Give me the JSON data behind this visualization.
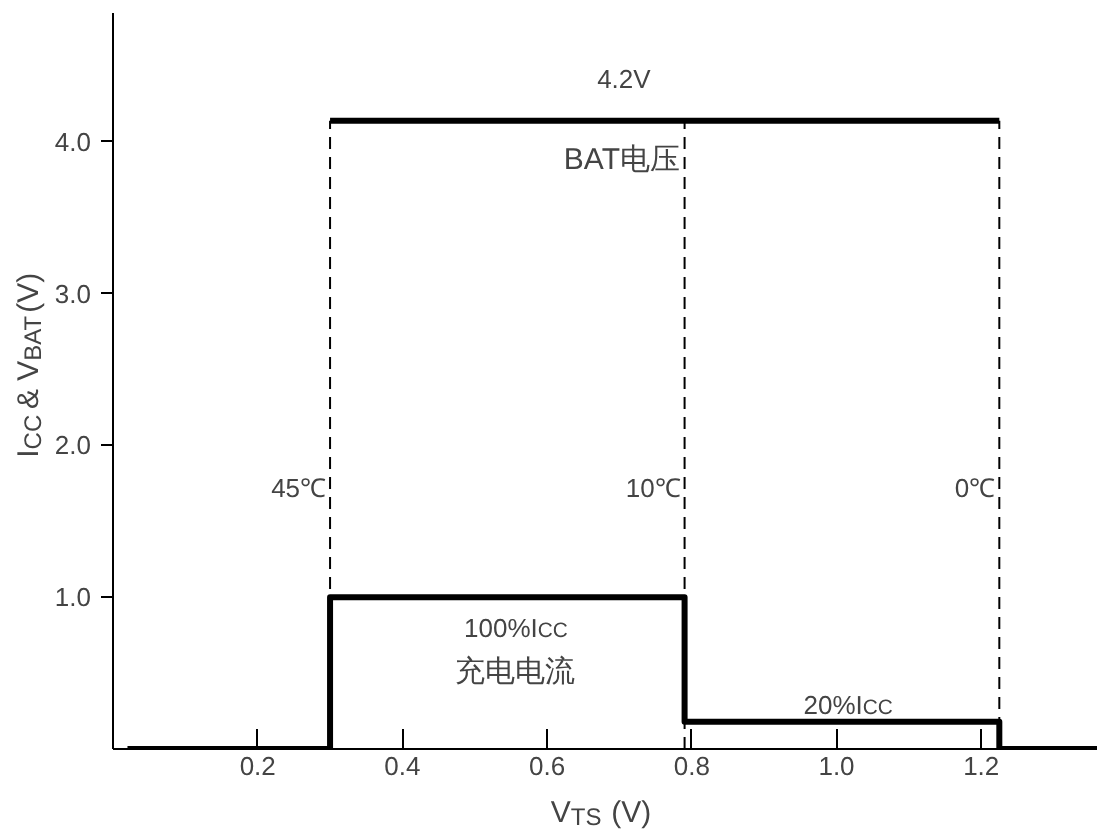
{
  "chart_data": {
    "type": "line",
    "xlabel": "V$_{TS}$ (V)",
    "ylabel": "I$_{CC}$ & V$_{BAT}$(V)",
    "series": [
      {
        "color": "#000000",
        "x": [
          0.3,
          1.225
        ],
        "values": [
          4.14,
          4.14
        ]
      },
      {
        "type": "step",
        "color": "#000000",
        "x": [
          0.02,
          0.3,
          0.79,
          1.225,
          1.36
        ],
        "values": [
          0,
          1.0,
          0.18,
          0,
          0
        ]
      }
    ],
    "xlim": [
      0,
      1.36
    ],
    "ylim": [
      0,
      4.85
    ],
    "xticks": [
      0.2,
      0.4,
      0.6,
      0.8,
      {
        "value": 1.0,
        "label": "1.0"
      },
      1.2
    ],
    "yticks": [
      {
        "value": 1,
        "label": "1.0"
      },
      {
        "value": 2,
        "label": "2.0"
      },
      {
        "value": 3,
        "label": "3.0"
      },
      {
        "value": 4,
        "label": "4.0"
      }
    ],
    "ref_lines": [
      {
        "axis": "x",
        "value": 0.3,
        "label": "45℃",
        "line_style": "dashed",
        "color": "#000000"
      },
      {
        "axis": "x",
        "value": 0.79,
        "label": "10℃",
        "line_style": "dashed",
        "color": "#000000"
      },
      {
        "axis": "x",
        "value": 1.225,
        "label": "0℃",
        "line_style": "dashed",
        "color": "#000000"
      }
    ],
    "annotations": [
      "4.2V",
      "BAT电压",
      "100%I$_{CC}$",
      "充电电流",
      "20%I$_{CC}$"
    ],
    "grid": false,
    "marker": "none",
    "line_style": "solid"
  }
}
